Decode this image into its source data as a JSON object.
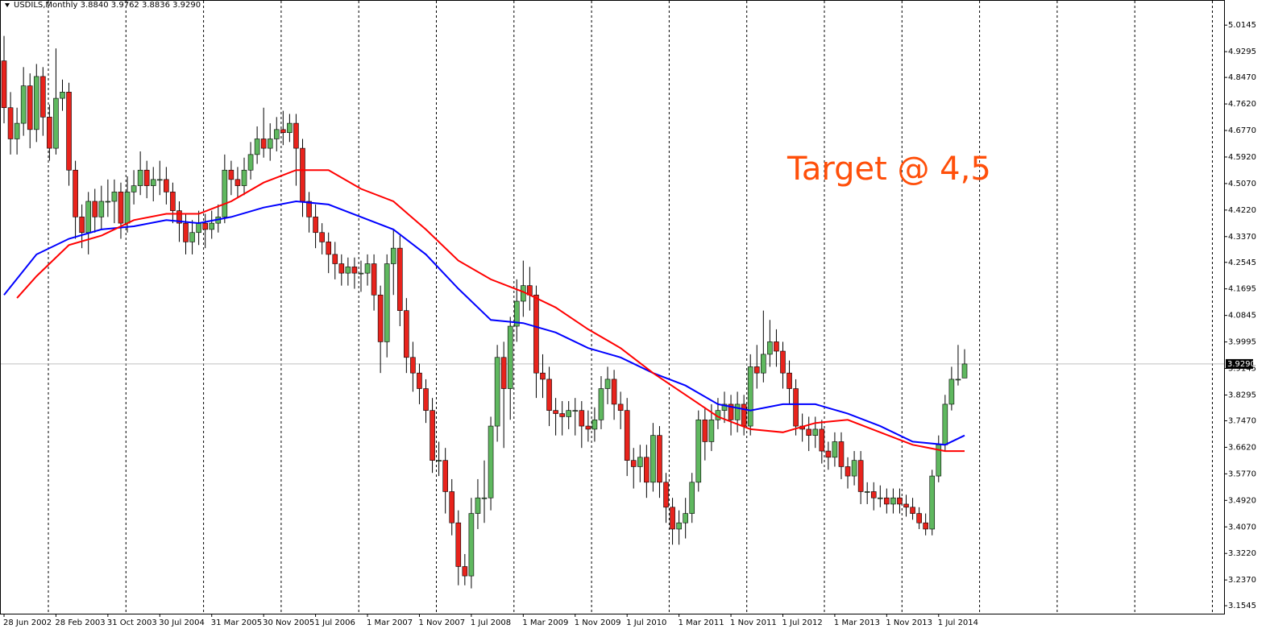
{
  "chart_data": {
    "type": "candlestick",
    "header": "USDILS,Monthly  3.8840 3.9762 3.8836 3.9290",
    "annotation": "Target @ 4,5",
    "annotation_color": "#ff4f0a",
    "ylim": [
      3.129,
      5.095
    ],
    "yticks": [
      5.0145,
      4.9295,
      {
        "value": 4.847,
        "label": "4.8470"
      },
      {
        "value": 4.762,
        "label": "4.7620"
      },
      {
        "value": 4.677,
        "label": "4.6770"
      },
      {
        "value": 4.592,
        "label": "4.5920"
      },
      {
        "value": 4.507,
        "label": "4.5070"
      },
      {
        "value": 4.422,
        "label": "4.4220"
      },
      {
        "value": 4.337,
        "label": "4.3370"
      },
      4.2545,
      4.1695,
      4.0845,
      3.9995,
      3.9145,
      3.8295,
      {
        "value": 3.747,
        "label": "3.7470"
      },
      {
        "value": 3.662,
        "label": "3.6620"
      },
      {
        "value": 3.577,
        "label": "3.5770"
      },
      {
        "value": 3.492,
        "label": "3.4920"
      },
      {
        "value": 3.407,
        "label": "3.4070"
      },
      {
        "value": 3.322,
        "label": "3.3220"
      },
      {
        "value": 3.237,
        "label": "3.2370"
      },
      3.1545
    ],
    "xticks": [
      {
        "value": 0,
        "label": "28 Jun 2002"
      },
      {
        "value": 8,
        "label": "28 Feb 2003"
      },
      {
        "value": 16,
        "label": "31 Oct 2003"
      },
      {
        "value": 24,
        "label": "30 Jul 2004"
      },
      {
        "value": 32,
        "label": "31 Mar 2005"
      },
      {
        "value": 40,
        "label": "30 Nov 2005"
      },
      {
        "value": 48,
        "label": "1 Jul 2006"
      },
      {
        "value": 56,
        "label": "1 Mar 2007"
      },
      {
        "value": 64,
        "label": "1 Nov 2007"
      },
      {
        "value": 72,
        "label": "1 Jul 2008"
      },
      {
        "value": 80,
        "label": "1 Mar 2009"
      },
      {
        "value": 88,
        "label": "1 Nov 2009"
      },
      {
        "value": 96,
        "label": "1 Jul 2010"
      },
      {
        "value": 104,
        "label": "1 Mar 2011"
      },
      {
        "value": 112,
        "label": "1 Nov 2011"
      },
      {
        "value": 120,
        "label": "1 Jul 2012"
      },
      {
        "value": 128,
        "label": "1 Mar 2013"
      },
      {
        "value": 136,
        "label": "1 Nov 2013"
      },
      {
        "value": 144,
        "label": "1 Jul 2014"
      }
    ],
    "current_price": 3.929,
    "current_price_label": "3.9290",
    "candles": {
      "up_color": "#5fb85f",
      "down_color": "#e8231c",
      "ohlc": [
        [
          4.9,
          4.98,
          4.7,
          4.75
        ],
        [
          4.75,
          4.8,
          4.6,
          4.65
        ],
        [
          4.65,
          4.75,
          4.6,
          4.7
        ],
        [
          4.7,
          4.88,
          4.66,
          4.82
        ],
        [
          4.82,
          4.86,
          4.62,
          4.68
        ],
        [
          4.68,
          4.89,
          4.64,
          4.85
        ],
        [
          4.85,
          4.88,
          4.66,
          4.72
        ],
        [
          4.72,
          4.76,
          4.58,
          4.62
        ],
        [
          4.62,
          4.94,
          4.6,
          4.78
        ],
        [
          4.78,
          4.84,
          4.74,
          4.8
        ],
        [
          4.8,
          4.83,
          4.5,
          4.55
        ],
        [
          4.55,
          4.58,
          4.33,
          4.4
        ],
        [
          4.4,
          4.44,
          4.3,
          4.35
        ],
        [
          4.35,
          4.48,
          4.28,
          4.45
        ],
        [
          4.45,
          4.49,
          4.35,
          4.4
        ],
        [
          4.4,
          4.5,
          4.36,
          4.45
        ],
        [
          4.45,
          4.52,
          4.4,
          4.45
        ],
        [
          4.45,
          4.52,
          4.38,
          4.48
        ],
        [
          4.48,
          4.51,
          4.33,
          4.38
        ],
        [
          4.38,
          4.53,
          4.35,
          4.48
        ],
        [
          4.48,
          4.55,
          4.44,
          4.5
        ],
        [
          4.5,
          4.61,
          4.47,
          4.55
        ],
        [
          4.55,
          4.58,
          4.46,
          4.5
        ],
        [
          4.5,
          4.56,
          4.45,
          4.52
        ],
        [
          4.52,
          4.58,
          4.47,
          4.52
        ],
        [
          4.52,
          4.56,
          4.44,
          4.48
        ],
        [
          4.48,
          4.51,
          4.38,
          4.42
        ],
        [
          4.42,
          4.45,
          4.32,
          4.38
        ],
        [
          4.38,
          4.41,
          4.28,
          4.32
        ],
        [
          4.32,
          4.39,
          4.28,
          4.35
        ],
        [
          4.35,
          4.42,
          4.31,
          4.38
        ],
        [
          4.38,
          4.41,
          4.3,
          4.36
        ],
        [
          4.36,
          4.42,
          4.33,
          4.38
        ],
        [
          4.38,
          4.44,
          4.35,
          4.4
        ],
        [
          4.4,
          4.6,
          4.38,
          4.55
        ],
        [
          4.55,
          4.58,
          4.47,
          4.52
        ],
        [
          4.52,
          4.56,
          4.46,
          4.5
        ],
        [
          4.5,
          4.59,
          4.47,
          4.55
        ],
        [
          4.55,
          4.64,
          4.52,
          4.6
        ],
        [
          4.6,
          4.69,
          4.57,
          4.65
        ],
        [
          4.65,
          4.75,
          4.59,
          4.62
        ],
        [
          4.62,
          4.7,
          4.58,
          4.65
        ],
        [
          4.65,
          4.72,
          4.61,
          4.68
        ],
        [
          4.68,
          4.74,
          4.63,
          4.67
        ],
        [
          4.67,
          4.73,
          4.64,
          4.7
        ],
        [
          4.7,
          4.73,
          4.5,
          4.62
        ],
        [
          4.62,
          4.65,
          4.4,
          4.45
        ],
        [
          4.45,
          4.48,
          4.35,
          4.4
        ],
        [
          4.4,
          4.44,
          4.3,
          4.35
        ],
        [
          4.35,
          4.38,
          4.28,
          4.32
        ],
        [
          4.32,
          4.35,
          4.22,
          4.28
        ],
        [
          4.28,
          4.32,
          4.2,
          4.25
        ],
        [
          4.25,
          4.28,
          4.18,
          4.22
        ],
        [
          4.22,
          4.27,
          4.18,
          4.24
        ],
        [
          4.24,
          4.27,
          4.17,
          4.22
        ],
        [
          4.22,
          4.26,
          4.16,
          4.22
        ],
        [
          4.22,
          4.28,
          4.18,
          4.25
        ],
        [
          4.25,
          4.28,
          4.1,
          4.15
        ],
        [
          4.15,
          4.18,
          3.9,
          4.0
        ],
        [
          4.0,
          4.28,
          3.95,
          4.25
        ],
        [
          4.25,
          4.36,
          4.15,
          4.3
        ],
        [
          4.3,
          4.34,
          4.05,
          4.1
        ],
        [
          4.1,
          4.14,
          3.9,
          3.95
        ],
        [
          3.95,
          4.0,
          3.84,
          3.9
        ],
        [
          3.9,
          3.93,
          3.8,
          3.85
        ],
        [
          3.85,
          3.88,
          3.74,
          3.78
        ],
        [
          3.78,
          3.82,
          3.58,
          3.62
        ],
        [
          3.62,
          3.68,
          3.57,
          3.62
        ],
        [
          3.62,
          3.66,
          3.45,
          3.52
        ],
        [
          3.52,
          3.56,
          3.38,
          3.42
        ],
        [
          3.42,
          3.46,
          3.22,
          3.28
        ],
        [
          3.28,
          3.32,
          3.22,
          3.25
        ],
        [
          3.25,
          3.5,
          3.21,
          3.45
        ],
        [
          3.45,
          3.56,
          3.4,
          3.5
        ],
        [
          3.5,
          3.62,
          3.42,
          3.5
        ],
        [
          3.5,
          3.76,
          3.46,
          3.73
        ],
        [
          3.73,
          3.99,
          3.68,
          3.95
        ],
        [
          3.95,
          4.0,
          3.66,
          3.85
        ],
        [
          3.85,
          4.08,
          3.75,
          4.05
        ],
        [
          4.05,
          4.2,
          4.0,
          4.13
        ],
        [
          4.13,
          4.26,
          4.08,
          4.18
        ],
        [
          4.18,
          4.24,
          4.1,
          4.15
        ],
        [
          4.15,
          4.18,
          3.82,
          3.9
        ],
        [
          3.9,
          3.96,
          3.82,
          3.88
        ],
        [
          3.88,
          3.92,
          3.73,
          3.78
        ],
        [
          3.78,
          3.82,
          3.7,
          3.77
        ],
        [
          3.77,
          3.81,
          3.7,
          3.76
        ],
        [
          3.76,
          3.81,
          3.72,
          3.78
        ],
        [
          3.78,
          3.82,
          3.7,
          3.78
        ],
        [
          3.78,
          3.81,
          3.66,
          3.73
        ],
        [
          3.73,
          3.78,
          3.68,
          3.72
        ],
        [
          3.72,
          3.79,
          3.68,
          3.75
        ],
        [
          3.75,
          3.89,
          3.72,
          3.85
        ],
        [
          3.85,
          3.92,
          3.8,
          3.88
        ],
        [
          3.88,
          3.91,
          3.75,
          3.8
        ],
        [
          3.8,
          3.84,
          3.72,
          3.78
        ],
        [
          3.78,
          3.82,
          3.57,
          3.62
        ],
        [
          3.62,
          3.66,
          3.53,
          3.6
        ],
        [
          3.6,
          3.67,
          3.55,
          3.63
        ],
        [
          3.63,
          3.67,
          3.5,
          3.55
        ],
        [
          3.55,
          3.74,
          3.52,
          3.7
        ],
        [
          3.7,
          3.73,
          3.5,
          3.55
        ],
        [
          3.55,
          3.58,
          3.42,
          3.47
        ],
        [
          3.47,
          3.5,
          3.35,
          3.4
        ],
        [
          3.4,
          3.46,
          3.35,
          3.42
        ],
        [
          3.42,
          3.5,
          3.37,
          3.45
        ],
        [
          3.45,
          3.58,
          3.42,
          3.55
        ],
        [
          3.55,
          3.78,
          3.52,
          3.75
        ],
        [
          3.75,
          3.79,
          3.62,
          3.68
        ],
        [
          3.68,
          3.8,
          3.65,
          3.75
        ],
        [
          3.75,
          3.82,
          3.72,
          3.78
        ],
        [
          3.78,
          3.84,
          3.74,
          3.8
        ],
        [
          3.8,
          3.83,
          3.7,
          3.75
        ],
        [
          3.75,
          3.84,
          3.71,
          3.8
        ],
        [
          3.8,
          3.83,
          3.7,
          3.73
        ],
        [
          3.73,
          3.96,
          3.7,
          3.92
        ],
        [
          3.92,
          3.99,
          3.85,
          3.9
        ],
        [
          3.9,
          4.1,
          3.87,
          3.96
        ],
        [
          3.96,
          4.07,
          3.92,
          4.0
        ],
        [
          4.0,
          4.04,
          3.92,
          3.97
        ],
        [
          3.97,
          4.0,
          3.85,
          3.9
        ],
        [
          3.9,
          3.94,
          3.8,
          3.85
        ],
        [
          3.85,
          3.88,
          3.7,
          3.73
        ],
        [
          3.73,
          3.77,
          3.68,
          3.72
        ],
        [
          3.72,
          3.76,
          3.65,
          3.7
        ],
        [
          3.7,
          3.76,
          3.66,
          3.72
        ],
        [
          3.72,
          3.75,
          3.61,
          3.65
        ],
        [
          3.65,
          3.68,
          3.59,
          3.63
        ],
        [
          3.63,
          3.71,
          3.6,
          3.68
        ],
        [
          3.68,
          3.71,
          3.56,
          3.6
        ],
        [
          3.6,
          3.63,
          3.53,
          3.57
        ],
        [
          3.57,
          3.65,
          3.54,
          3.62
        ],
        [
          3.62,
          3.65,
          3.48,
          3.52
        ],
        [
          3.52,
          3.55,
          3.48,
          3.52
        ],
        [
          3.52,
          3.55,
          3.46,
          3.5
        ],
        [
          3.5,
          3.54,
          3.47,
          3.5
        ],
        [
          3.5,
          3.53,
          3.45,
          3.48
        ],
        [
          3.48,
          3.53,
          3.45,
          3.5
        ],
        [
          3.5,
          3.53,
          3.45,
          3.48
        ],
        [
          3.48,
          3.51,
          3.44,
          3.47
        ],
        [
          3.47,
          3.5,
          3.43,
          3.45
        ],
        [
          3.45,
          3.47,
          3.4,
          3.42
        ],
        [
          3.42,
          3.45,
          3.38,
          3.4
        ],
        [
          3.4,
          3.59,
          3.38,
          3.57
        ],
        [
          3.57,
          3.7,
          3.55,
          3.67
        ],
        [
          3.67,
          3.83,
          3.65,
          3.8
        ],
        [
          3.8,
          3.92,
          3.78,
          3.88
        ],
        [
          3.88,
          3.99,
          3.86,
          3.88
        ],
        [
          3.884,
          3.9762,
          3.8836,
          3.929
        ]
      ]
    },
    "lines": [
      {
        "color": "#0000ff",
        "x": [
          0,
          5,
          10,
          15,
          20,
          25,
          30,
          35,
          40,
          45,
          50,
          55,
          60,
          65,
          70,
          75,
          80,
          85,
          90,
          95,
          100,
          105,
          110,
          115,
          120,
          125,
          130,
          135,
          140,
          145,
          148
        ],
        "values": [
          4.15,
          4.28,
          4.33,
          4.36,
          4.37,
          4.39,
          4.38,
          4.4,
          4.43,
          4.45,
          4.44,
          4.4,
          4.36,
          4.28,
          4.17,
          4.07,
          4.06,
          4.03,
          3.98,
          3.95,
          3.9,
          3.86,
          3.8,
          3.78,
          3.8,
          3.8,
          3.77,
          3.73,
          3.68,
          3.67,
          3.7
        ]
      },
      {
        "color": "#ff0000",
        "x": [
          2,
          5,
          10,
          15,
          20,
          25,
          30,
          35,
          40,
          45,
          50,
          55,
          60,
          65,
          70,
          75,
          80,
          85,
          90,
          95,
          100,
          105,
          110,
          115,
          120,
          125,
          130,
          135,
          140,
          145,
          148
        ],
        "values": [
          4.14,
          4.21,
          4.31,
          4.34,
          4.39,
          4.41,
          4.41,
          4.45,
          4.51,
          4.55,
          4.55,
          4.49,
          4.45,
          4.36,
          4.26,
          4.2,
          4.16,
          4.11,
          4.04,
          3.98,
          3.9,
          3.83,
          3.76,
          3.72,
          3.71,
          3.74,
          3.75,
          3.71,
          3.67,
          3.65,
          3.65
        ]
      }
    ]
  }
}
